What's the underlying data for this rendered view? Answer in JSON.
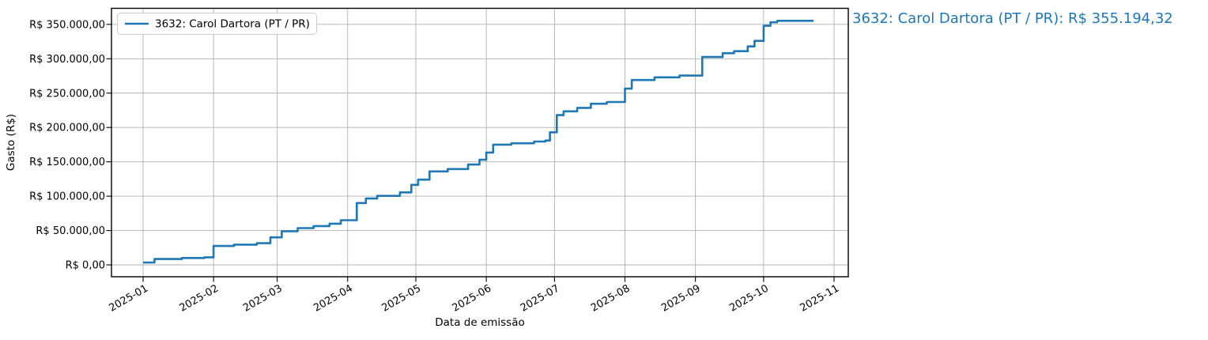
{
  "figure": {
    "x_axis_title": "Data de emissão",
    "y_axis_title": "Gasto (R$)",
    "legend_label": "3632: Carol Dartora (PT / PR)",
    "annotation": "3632: Carol Dartora (PT / PR): R$ 355.194,32",
    "colors": {
      "line": "#1f77b4",
      "annotation_text": "#1f77b4",
      "grid": "#b0b0b0",
      "background": "#ffffff"
    }
  },
  "chart_data": {
    "type": "line",
    "step": "post",
    "title": "",
    "xlabel": "Data de emissão",
    "ylabel": "Gasto (R$)",
    "legend_position": "upper left",
    "grid": true,
    "x_tick_labels": [
      "2025-01",
      "2025-02",
      "2025-03",
      "2025-04",
      "2025-05",
      "2025-06",
      "2025-07",
      "2025-08",
      "2025-09",
      "2025-10",
      "2025-11"
    ],
    "y_ticks": [
      0,
      50000,
      100000,
      150000,
      200000,
      250000,
      300000,
      350000
    ],
    "y_tick_labels": [
      "R$ 0,00",
      "R$ 50.000,00",
      "R$ 100.000,00",
      "R$ 150.000,00",
      "R$ 200.000,00",
      "R$ 250.000,00",
      "R$ 300.000,00",
      "R$ 350.000,00"
    ],
    "ylim_approx": [
      -4000,
      375000
    ],
    "xlim_approx": [
      "2024-12-18",
      "2025-11-06"
    ],
    "series": [
      {
        "name": "3632: Carol Dartora (PT / PR)",
        "color": "#1f77b4",
        "final_value": 355194.32,
        "final_value_label": "R$ 355.194,32",
        "points": [
          [
            "2025-01-01",
            3500
          ],
          [
            "2025-01-06",
            8500
          ],
          [
            "2025-01-18",
            10000
          ],
          [
            "2025-01-28",
            11000
          ],
          [
            "2025-02-01",
            27500
          ],
          [
            "2025-02-10",
            29500
          ],
          [
            "2025-02-20",
            31500
          ],
          [
            "2025-02-26",
            40000
          ],
          [
            "2025-03-03",
            49000
          ],
          [
            "2025-03-10",
            53500
          ],
          [
            "2025-03-17",
            56500
          ],
          [
            "2025-03-24",
            60000
          ],
          [
            "2025-03-29",
            65000
          ],
          [
            "2025-04-05",
            90000
          ],
          [
            "2025-04-09",
            96500
          ],
          [
            "2025-04-14",
            100500
          ],
          [
            "2025-04-24",
            105500
          ],
          [
            "2025-04-29",
            116500
          ],
          [
            "2025-05-02",
            124000
          ],
          [
            "2025-05-07",
            136000
          ],
          [
            "2025-05-15",
            139500
          ],
          [
            "2025-05-24",
            146000
          ],
          [
            "2025-05-29",
            153000
          ],
          [
            "2025-06-01",
            163500
          ],
          [
            "2025-06-04",
            175000
          ],
          [
            "2025-06-12",
            177000
          ],
          [
            "2025-06-22",
            179500
          ],
          [
            "2025-06-27",
            181000
          ],
          [
            "2025-06-29",
            193000
          ],
          [
            "2025-07-02",
            218000
          ],
          [
            "2025-07-05",
            223500
          ],
          [
            "2025-07-11",
            228500
          ],
          [
            "2025-07-17",
            234500
          ],
          [
            "2025-07-24",
            237000
          ],
          [
            "2025-08-01",
            256500
          ],
          [
            "2025-08-04",
            269000
          ],
          [
            "2025-08-14",
            273000
          ],
          [
            "2025-08-25",
            275500
          ],
          [
            "2025-09-04",
            302500
          ],
          [
            "2025-09-13",
            308000
          ],
          [
            "2025-09-18",
            311000
          ],
          [
            "2025-09-24",
            318000
          ],
          [
            "2025-09-27",
            326000
          ],
          [
            "2025-10-01",
            348000
          ],
          [
            "2025-10-04",
            353000
          ],
          [
            "2025-10-07",
            355194.32
          ],
          [
            "2025-10-23",
            355194.32
          ]
        ]
      }
    ]
  }
}
